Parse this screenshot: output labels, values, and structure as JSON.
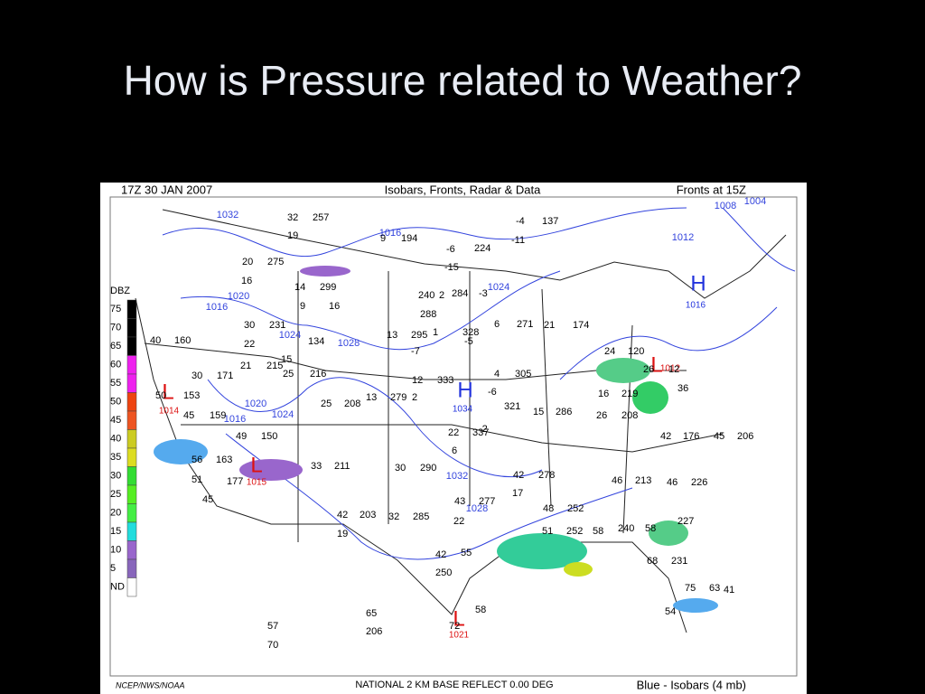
{
  "slide": {
    "title": "How is Pressure related to Weather?"
  },
  "map": {
    "header": {
      "time": "17Z   30 JAN  2007",
      "title": "Isobars, Fronts, Radar & Data",
      "fronts": "Fronts at 15Z"
    },
    "legend": {
      "title": "DBZ",
      "levels": [
        "75",
        "70",
        "65",
        "60",
        "55",
        "50",
        "45",
        "40",
        "35",
        "30",
        "25",
        "20",
        "15",
        "10",
        "5",
        "ND"
      ]
    },
    "footer": {
      "credit": "NCEP/NWS/NOAA",
      "product": "NATIONAL 2 KM BASE REFLECT 0.00 DEG",
      "key": "Blue - Isobars (4 mb)"
    },
    "pressure_centers": [
      {
        "label": "H",
        "pressure": "1016"
      },
      {
        "label": "L",
        "pressure": "1012"
      },
      {
        "label": "H",
        "pressure": "1034"
      },
      {
        "label": "L",
        "pressure": "1014"
      },
      {
        "label": "L",
        "pressure": "1015"
      },
      {
        "label": "L",
        "pressure": "1021"
      }
    ],
    "isobars": [
      "1032",
      "1016",
      "1020",
      "1024",
      "1028",
      "1020",
      "1024",
      "1016",
      "1008",
      "1004",
      "1012",
      "1032",
      "1028",
      "1024",
      "1016"
    ],
    "stations": [
      "32",
      "257",
      "19",
      "-4",
      "137",
      "-11",
      "9",
      "194",
      "-6",
      "224",
      "-15",
      "20",
      "275",
      "16",
      "14",
      "299",
      "9",
      "16",
      "240",
      "2",
      "284",
      "-3",
      "288",
      "30",
      "231",
      "22",
      "15",
      "134",
      "13",
      "295",
      "-7",
      "1",
      "328",
      "-5",
      "6",
      "271",
      "21",
      "174",
      "40",
      "160",
      "30",
      "171",
      "21",
      "215",
      "25",
      "216",
      "12",
      "333",
      "2",
      "4",
      "305",
      "-6",
      "24",
      "120",
      "26",
      "12",
      "50",
      "153",
      "45",
      "159",
      "13",
      "279",
      "25",
      "208",
      "-2",
      "321",
      "15",
      "286",
      "36",
      "49",
      "150",
      "22",
      "337",
      "6",
      "16",
      "219",
      "26",
      "208",
      "42",
      "176",
      "45",
      "206",
      "56",
      "163",
      "33",
      "211",
      "30",
      "290",
      "42",
      "278",
      "17",
      "46",
      "213",
      "46",
      "226",
      "51",
      "177",
      "45",
      "42",
      "203",
      "19",
      "32",
      "285",
      "43",
      "277",
      "22",
      "48",
      "252",
      "51",
      "252",
      "58",
      "240",
      "58",
      "227",
      "42",
      "55",
      "250",
      "68",
      "231",
      "75",
      "63",
      "41",
      "65",
      "206",
      "58",
      "72",
      "57",
      "70",
      "54"
    ]
  }
}
